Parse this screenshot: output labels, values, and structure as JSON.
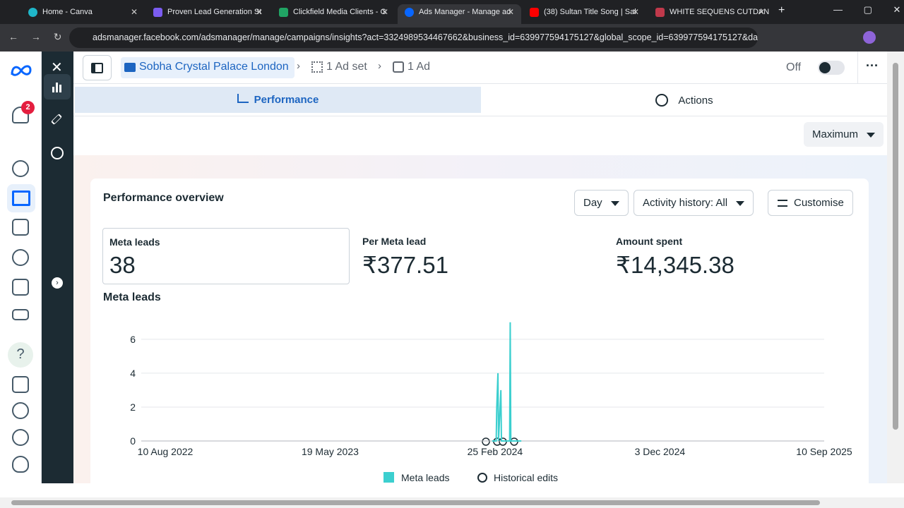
{
  "browser": {
    "tabs": [
      "Home - Canva",
      "Proven Lead Generation St",
      "Clickfield Media Clients - G",
      "Ads Manager - Manage ad",
      "(38) Sultan Title Song | Sal",
      "WHITE SEQUENS CUTDAN"
    ],
    "url": "adsmanager.facebook.com/adsmanager/manage/campaigns/insights?act=3324989534467662&business_id=639977594175127&global_scope_id=639977594175127&da..."
  },
  "nav": {
    "notification_count": "2"
  },
  "breadcrumb": {
    "campaign": "Sobha Crystal Palace London",
    "ad_set": "1 Ad set",
    "ad": "1 Ad"
  },
  "toolbar": {
    "status": "Off"
  },
  "view_tabs": [
    "Performance",
    "Actions"
  ],
  "range_dropdown": "Maximum",
  "overview": {
    "title": "Performance overview",
    "controls": [
      "Day",
      "Activity history: All",
      "Customise"
    ],
    "metrics": [
      {
        "label": "Meta leads",
        "value": "38"
      },
      {
        "label": "Per Meta lead",
        "value": "₹377.51"
      },
      {
        "label": "Amount spent",
        "value": "₹14,345.38"
      }
    ]
  },
  "chart_data": {
    "type": "line",
    "title": "Meta leads",
    "x": [
      "2024-02-20",
      "2024-02-27",
      "2024-02-28",
      "2024-03-01",
      "2024-03-02",
      "2024-03-06",
      "2024-03-07",
      "2024-03-21",
      "2024-03-22",
      "2024-03-23",
      "2024-04-10"
    ],
    "series": [
      {
        "name": "Meta leads",
        "color": "#3ccfcf",
        "values": [
          0,
          0,
          2,
          4,
          0,
          3,
          0,
          0,
          7,
          0,
          0
        ]
      }
    ],
    "xlim": [
      "2022-08-10",
      "2025-09-10"
    ],
    "xticks": [
      {
        "value": "2022-08-10",
        "label": "10 Aug 2022"
      },
      {
        "value": "2023-05-19",
        "label": "19 May 2023"
      },
      {
        "value": "2024-02-25",
        "label": "25 Feb 2024"
      },
      {
        "value": "2024-12-03",
        "label": "3 Dec 2024"
      },
      {
        "value": "2025-09-10",
        "label": "10 Sep 2025"
      }
    ],
    "ylim": [
      0,
      7.2
    ],
    "yticks": [
      0,
      2,
      4,
      6
    ],
    "grid": true,
    "events_label": "Historical edits"
  }
}
